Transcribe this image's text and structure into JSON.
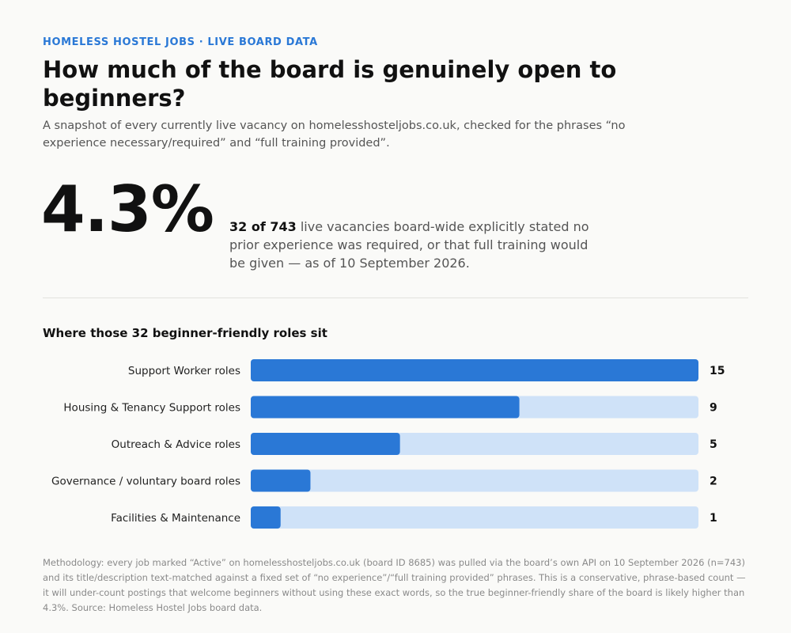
{
  "eyebrow": "HOMELESS HOSTEL JOBS · LIVE BOARD DATA",
  "title": "How much of the board is genuinely open to beginners?",
  "subtitle": "A snapshot of every currently live vacancy on homelesshosteljobs.co.uk, checked for the phrases “no experience necessary/required” and “full training provided”.",
  "stat": {
    "value": "4.3%",
    "highlight": "32 of 743",
    "text": " live vacancies board-wide explicitly stated no prior experience was required, or that full training would be given — as of 10 September 2026."
  },
  "methodology": "Methodology: every job marked “Active” on homelesshosteljobs.co.uk (board ID 8685) was pulled via the board’s own API on 10 September 2026 (n=743) and its title/description text-matched against a fixed set of “no experience”/“full training provided” phrases. This is a conservative, phrase-based count — it will under-count postings that welcome beginners without using these exact words, so the true beginner-friendly share of the board is likely higher than 4.3%. Source: Homeless Hostel Jobs board data.",
  "colors": {
    "bar": "#2a78d6",
    "track": "#cfe2f8",
    "accent": "#2a78d6"
  },
  "chart_data": {
    "type": "bar",
    "orientation": "horizontal",
    "title": "Where those 32 beginner-friendly roles sit",
    "categories": [
      "Support Worker roles",
      "Housing & Tenancy Support roles",
      "Outreach & Advice roles",
      "Governance / voluntary board roles",
      "Facilities & Maintenance"
    ],
    "values": [
      15,
      9,
      5,
      2,
      1
    ],
    "xlim": [
      0,
      15
    ],
    "grid": false,
    "legend": "none"
  }
}
